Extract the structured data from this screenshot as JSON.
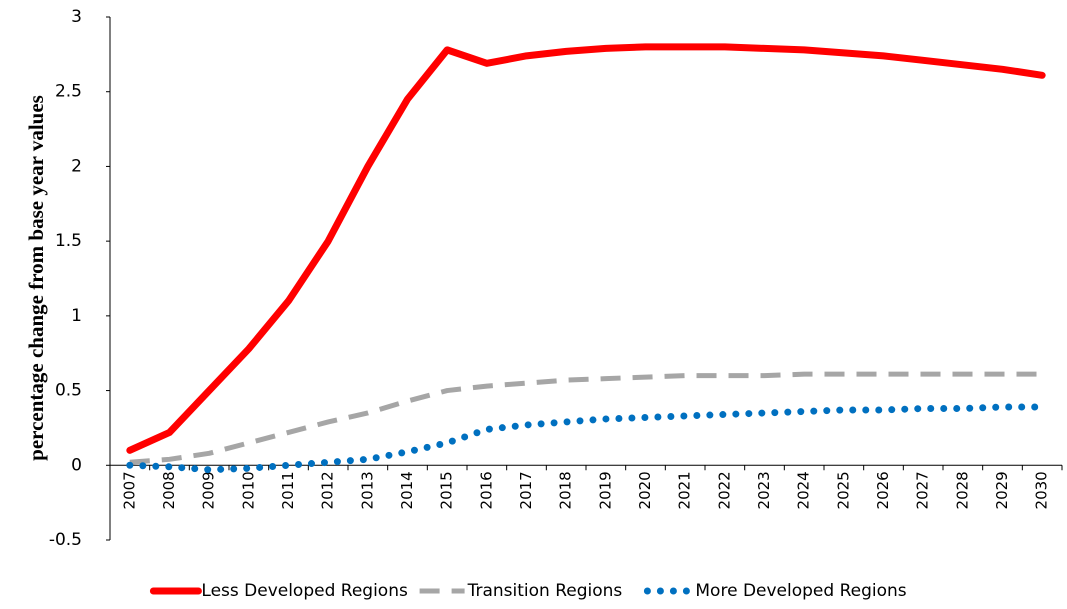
{
  "chart_data": {
    "type": "line",
    "y_label": "percentage change from base year values",
    "categories": [
      "2007",
      "2008",
      "2009",
      "2010",
      "2011",
      "2012",
      "2013",
      "2014",
      "2015",
      "2016",
      "2017",
      "2018",
      "2019",
      "2020",
      "2021",
      "2022",
      "2023",
      "2024",
      "2025",
      "2026",
      "2027",
      "2028",
      "2029",
      "2030"
    ],
    "series": [
      {
        "name": "Less Developed Regions",
        "color": "#ff0000",
        "style": "solid",
        "values": [
          0.1,
          0.22,
          0.5,
          0.78,
          1.1,
          1.5,
          2.0,
          2.45,
          2.78,
          2.69,
          2.74,
          2.77,
          2.79,
          2.8,
          2.8,
          2.8,
          2.79,
          2.78,
          2.76,
          2.74,
          2.71,
          2.68,
          2.65,
          2.61
        ]
      },
      {
        "name": "Transition Regions",
        "color": "#a6a6a6",
        "style": "dashed",
        "values": [
          0.02,
          0.04,
          0.08,
          0.15,
          0.22,
          0.29,
          0.35,
          0.43,
          0.5,
          0.53,
          0.55,
          0.57,
          0.58,
          0.59,
          0.6,
          0.6,
          0.6,
          0.61,
          0.61,
          0.61,
          0.61,
          0.61,
          0.61,
          0.61
        ]
      },
      {
        "name": "More Developed Regions",
        "color": "#0070c0",
        "style": "dotted",
        "values": [
          0,
          -0.01,
          -0.03,
          -0.02,
          0,
          0.02,
          0.04,
          0.09,
          0.15,
          0.24,
          0.27,
          0.29,
          0.31,
          0.32,
          0.33,
          0.34,
          0.35,
          0.36,
          0.37,
          0.37,
          0.38,
          0.38,
          0.39,
          0.39
        ]
      }
    ],
    "ylim": [
      -0.5,
      3
    ],
    "yticks": [
      -0.5,
      0,
      0.5,
      1,
      1.5,
      2,
      2.5,
      3
    ],
    "grid": false,
    "legend": "bottom"
  }
}
